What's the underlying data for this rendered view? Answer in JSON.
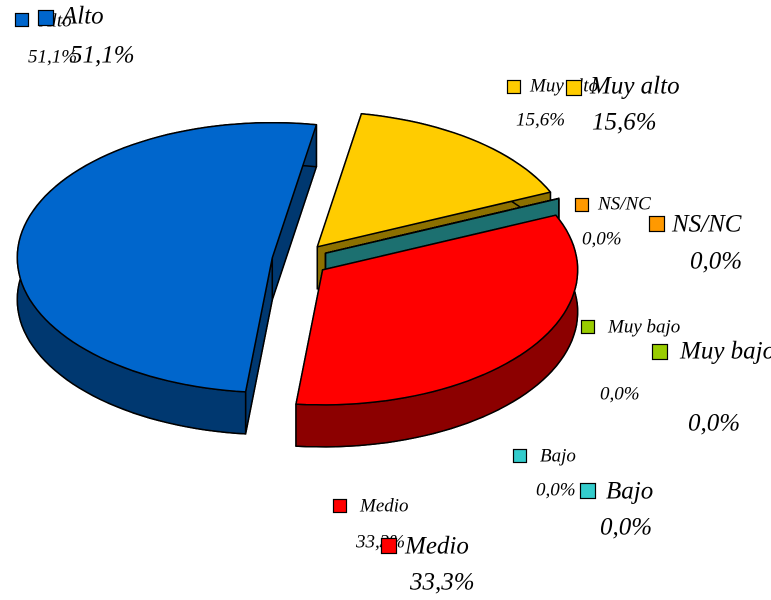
{
  "chart_data": {
    "type": "pie",
    "categories": [
      "Alto",
      "Muy alto",
      "NS/NC",
      "Muy bajo",
      "Bajo",
      "Medio"
    ],
    "values": [
      51.1,
      15.6,
      0,
      0,
      0,
      33.3
    ],
    "value_labels": [
      "51,1%",
      "15,6%",
      "0,0%",
      "0,0%",
      "0,0%",
      "33,3%"
    ],
    "colors": [
      "#0066cc",
      "#ffcc00",
      "#ff9900",
      "#99cc00",
      "#33cccc",
      "#ff0000"
    ]
  }
}
